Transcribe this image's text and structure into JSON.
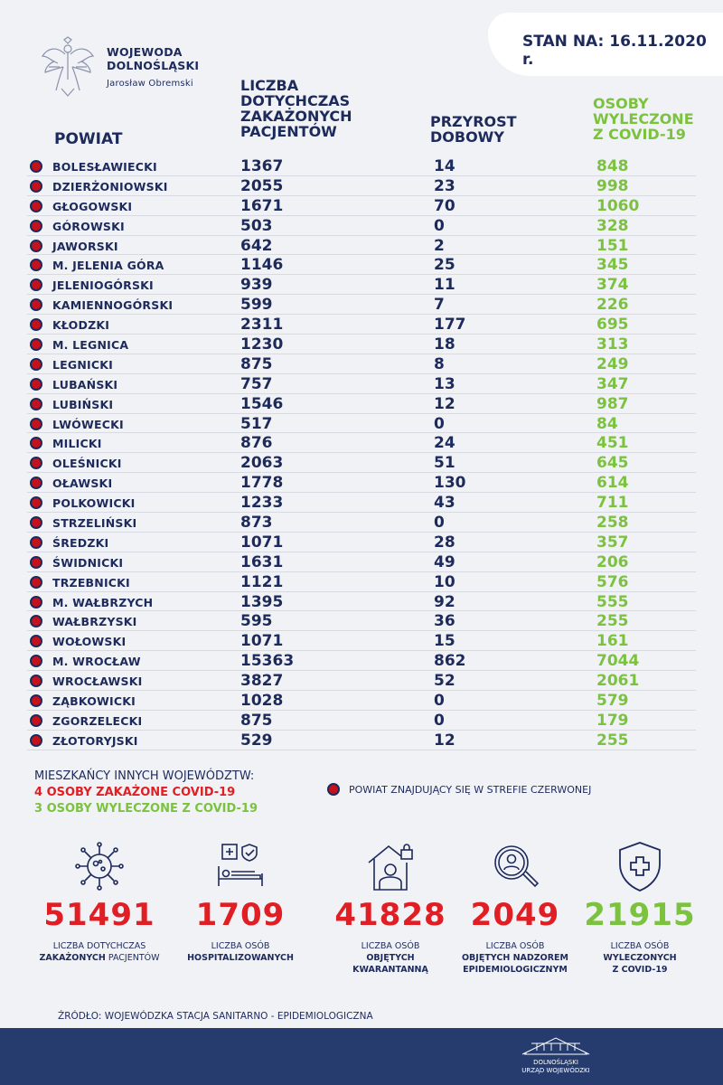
{
  "header": {
    "org_line1": "WOJEWODA",
    "org_line2": "DOLNOŚLĄSKI",
    "person": "Jarosław Obremski",
    "date": "STAN NA: 16.11.2020 r."
  },
  "columns": {
    "powiat": "POWIAT",
    "liczba": [
      "LICZBA",
      "DOTYCHCZAS",
      "ZAKAŻONYCH",
      "PACJENTÓW"
    ],
    "przyrost": [
      "PRZYROST",
      "DOBOWY"
    ],
    "osoby": [
      "OSOBY",
      "WYLECZONE",
      "Z COVID-19"
    ]
  },
  "rows": [
    {
      "name": "BOLESŁAWIECKI",
      "cases": "1367",
      "daily": "14",
      "recovered": "848"
    },
    {
      "name": "DZIERŻONIOWSKI",
      "cases": "2055",
      "daily": "23",
      "recovered": "998"
    },
    {
      "name": "GŁOGOWSKI",
      "cases": "1671",
      "daily": "70",
      "recovered": "1060"
    },
    {
      "name": "GÓROWSKI",
      "cases": "503",
      "daily": "0",
      "recovered": "328"
    },
    {
      "name": "JAWORSKI",
      "cases": "642",
      "daily": "2",
      "recovered": "151"
    },
    {
      "name": "M. JELENIA GÓRA",
      "cases": "1146",
      "daily": "25",
      "recovered": "345"
    },
    {
      "name": "JELENIOGÓRSKI",
      "cases": "939",
      "daily": "11",
      "recovered": "374"
    },
    {
      "name": "KAMIENNOGÓRSKI",
      "cases": "599",
      "daily": "7",
      "recovered": "226"
    },
    {
      "name": "KŁODZKI",
      "cases": "2311",
      "daily": "177",
      "recovered": "695"
    },
    {
      "name": "M. LEGNICA",
      "cases": "1230",
      "daily": "18",
      "recovered": "313"
    },
    {
      "name": "LEGNICKI",
      "cases": "875",
      "daily": "8",
      "recovered": "249"
    },
    {
      "name": "LUBAŃSKI",
      "cases": "757",
      "daily": "13",
      "recovered": "347"
    },
    {
      "name": "LUBIŃSKI",
      "cases": "1546",
      "daily": "12",
      "recovered": "987"
    },
    {
      "name": "LWÓWECKI",
      "cases": "517",
      "daily": "0",
      "recovered": "84"
    },
    {
      "name": "MILICKI",
      "cases": "876",
      "daily": "24",
      "recovered": "451"
    },
    {
      "name": "OLEŚNICKI",
      "cases": "2063",
      "daily": "51",
      "recovered": "645"
    },
    {
      "name": "OŁAWSKI",
      "cases": "1778",
      "daily": "130",
      "recovered": "614"
    },
    {
      "name": "POLKOWICKI",
      "cases": "1233",
      "daily": "43",
      "recovered": "711"
    },
    {
      "name": "STRZELIŃSKI",
      "cases": "873",
      "daily": "0",
      "recovered": "258"
    },
    {
      "name": "ŚREDZKI",
      "cases": "1071",
      "daily": "28",
      "recovered": "357"
    },
    {
      "name": "ŚWIDNICKI",
      "cases": "1631",
      "daily": "49",
      "recovered": "206"
    },
    {
      "name": "TRZEBNICKI",
      "cases": "1121",
      "daily": "10",
      "recovered": "576"
    },
    {
      "name": "M. WAŁBRZYCH",
      "cases": "1395",
      "daily": "92",
      "recovered": "555"
    },
    {
      "name": "WAŁBRZYSKI",
      "cases": "595",
      "daily": "36",
      "recovered": "255"
    },
    {
      "name": "WOŁOWSKI",
      "cases": "1071",
      "daily": "15",
      "recovered": "161"
    },
    {
      "name": "M. WROCŁAW",
      "cases": "15363",
      "daily": "862",
      "recovered": "7044"
    },
    {
      "name": "WROCŁAWSKI",
      "cases": "3827",
      "daily": "52",
      "recovered": "2061"
    },
    {
      "name": "ZĄBKOWICKI",
      "cases": "1028",
      "daily": "0",
      "recovered": "579"
    },
    {
      "name": "ZGORZELECKI",
      "cases": "875",
      "daily": "0",
      "recovered": "179"
    },
    {
      "name": "ZŁOTORYJSKI",
      "cases": "529",
      "daily": "12",
      "recovered": "255"
    }
  ],
  "others": {
    "title": "MIESZKAŃCY INNYCH WOJEWÓDZTW:",
    "infected": "4 OSOBY ZAKAŻONE COVID-19",
    "recovered": "3 OSOBY WYLECZONE Z COVID-19"
  },
  "legend": "POWIAT ZNAJDUJĄCY SIĘ W STREFIE CZERWONEJ",
  "stats": [
    {
      "icon": "virus-icon",
      "value": "51491",
      "cap1": "LICZBA DOTYCHCZAS",
      "cap2_bold": "ZAKAŻONYCH",
      "cap2_rest": " PACJENTÓW",
      "color": "#e01e23"
    },
    {
      "icon": "hospital-bed-icon",
      "value": "1709",
      "cap1": "LICZBA OSÓB",
      "cap2_bold": "HOSPITALIZOWANYCH",
      "cap2_rest": "",
      "color": "#e01e23"
    },
    {
      "icon": "quarantine-house-icon",
      "value": "41828",
      "cap1": "LICZBA OSÓB",
      "cap2_bold": "OBJĘTYCH KWARANTANNĄ",
      "cap2_rest": "",
      "color": "#e01e23"
    },
    {
      "icon": "magnifier-person-icon",
      "value": "2049",
      "cap1": "LICZBA OSÓB",
      "cap2_bold": "OBJĘTYCH NADZOREM EPIDEMIOLOGICZNYM",
      "cap2_rest": "",
      "color": "#e01e23"
    },
    {
      "icon": "shield-cross-icon",
      "value": "21915",
      "cap1": "LICZBA OSÓB",
      "cap2_bold": "WYLECZONYCH Z COVID-19",
      "cap2_rest": "",
      "color": "#7bc23e"
    }
  ],
  "source": "ŹRÓDŁO: WOJEWÓDZKA STACJA SANITARNO - EPIDEMIOLOGICZNA",
  "footer": {
    "line1": "DOLNOŚLĄSKI",
    "line2": "URZĄD WOJEWÓDZKI"
  }
}
